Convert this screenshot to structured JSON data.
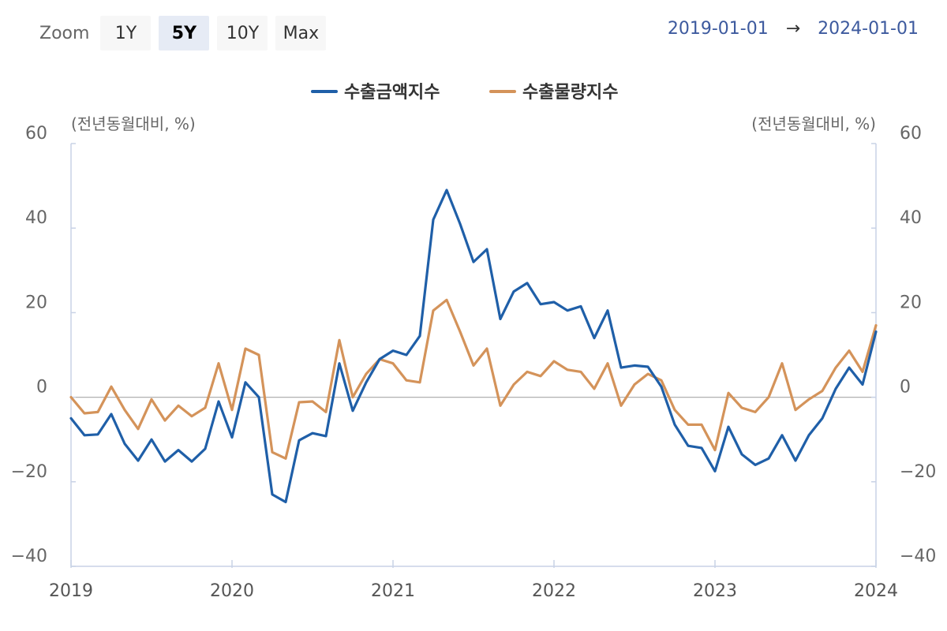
{
  "toolbar": {
    "zoom_label": "Zoom",
    "buttons": [
      "1Y",
      "5Y",
      "10Y",
      "Max"
    ],
    "active": "5Y"
  },
  "range": {
    "from": "2019-01-01",
    "arrow": "→",
    "to": "2024-01-01"
  },
  "colors": {
    "export_value": "#1f5fa8",
    "export_volume": "#d4935a",
    "axis": "#c8d2e6",
    "zero": "#b0b0b0"
  },
  "chart_data": {
    "type": "line",
    "left_unit": "(전년동월대비, %)",
    "right_unit": "(전년동월대비, %)",
    "ylim": [
      -40,
      60
    ],
    "yticks": [
      60,
      40,
      20,
      0,
      -20,
      -40
    ],
    "ytick_labels": [
      "60",
      "40",
      "20",
      "0",
      "−20",
      "−40"
    ],
    "x_range": [
      2019,
      2024
    ],
    "xticks": [
      "2019",
      "2020",
      "2021",
      "2022",
      "2023",
      "2024"
    ],
    "series": [
      {
        "name": "수출금액지수",
        "color": "#1f5fa8",
        "values": [
          -5.0,
          -9.0,
          -8.8,
          -4.0,
          -11.0,
          -15.0,
          -10.0,
          -15.2,
          -12.5,
          -15.2,
          -12.2,
          -1.0,
          -9.5,
          3.5,
          0.0,
          -23.0,
          -24.8,
          -10.2,
          -8.5,
          -9.2,
          8.0,
          -3.2,
          3.5,
          9.0,
          11.0,
          10.0,
          14.5,
          42.0,
          49.0,
          41.0,
          32.0,
          35.0,
          18.5,
          25.0,
          27.0,
          22.0,
          22.5,
          20.5,
          21.5,
          14.0,
          20.5,
          7.0,
          7.5,
          7.2,
          2.5,
          -6.5,
          -11.5,
          -12.0,
          -17.5,
          -7.0,
          -13.5,
          -16.0,
          -14.5,
          -9.0,
          -15.0,
          -9.0,
          -5.0,
          2.0,
          7.0,
          3.0,
          15.5
        ]
      },
      {
        "name": "수출물량지수",
        "color": "#d4935a",
        "values": [
          0.0,
          -3.8,
          -3.5,
          2.5,
          -3.0,
          -7.5,
          -0.5,
          -5.5,
          -2.0,
          -4.5,
          -2.5,
          8.0,
          -3.0,
          11.5,
          10.0,
          -13.0,
          -14.5,
          -1.2,
          -1.0,
          -3.5,
          13.5,
          0.0,
          5.5,
          9.0,
          8.0,
          4.0,
          3.5,
          20.5,
          23.0,
          15.5,
          7.5,
          11.5,
          -2.0,
          3.0,
          6.0,
          5.0,
          8.5,
          6.5,
          6.0,
          2.0,
          8.0,
          -2.0,
          3.0,
          5.5,
          4.0,
          -3.0,
          -6.5,
          -6.5,
          -12.5,
          1.0,
          -2.5,
          -3.5,
          0.0,
          8.0,
          -3.0,
          -0.5,
          1.5,
          7.0,
          11.0,
          6.0,
          17.0
        ]
      }
    ]
  }
}
